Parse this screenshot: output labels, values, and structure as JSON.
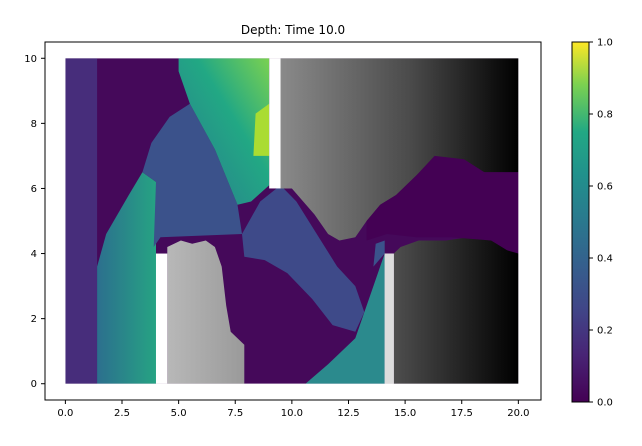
{
  "chart_data": {
    "type": "heatmap",
    "title": "Depth: Time 10.0",
    "xlabel": "",
    "ylabel": "",
    "xlim": [
      -0.9,
      21.0
    ],
    "ylim": [
      -0.5,
      10.5
    ],
    "xticks": [
      0.0,
      2.5,
      5.0,
      7.5,
      10.0,
      12.5,
      15.0,
      17.5,
      20.0
    ],
    "xtick_labels": [
      "0.0",
      "2.5",
      "5.0",
      "7.5",
      "10.0",
      "12.5",
      "15.0",
      "17.5",
      "20.0"
    ],
    "yticks": [
      0,
      2,
      4,
      6,
      8,
      10
    ],
    "ytick_labels": [
      "0",
      "2",
      "4",
      "6",
      "8",
      "10"
    ],
    "grid": false,
    "colorbar": {
      "colormap": "viridis",
      "range": [
        0.0,
        1.0
      ],
      "ticks": [
        0.0,
        0.2,
        0.4,
        0.6,
        0.8,
        1.0
      ],
      "tick_labels": [
        "0.0",
        "0.2",
        "0.4",
        "0.6",
        "0.8",
        "1.0"
      ],
      "placement": "right"
    },
    "gaps": [
      {
        "x": [
          4.0,
          4.5
        ],
        "y": [
          0,
          4
        ]
      },
      {
        "x": [
          9.0,
          9.5
        ],
        "y": [
          6,
          10
        ]
      },
      {
        "x": [
          14.1,
          14.5
        ],
        "y": [
          0,
          4
        ]
      }
    ],
    "dry_regions": [
      {
        "x": [
          4.5,
          7.9
        ],
        "y": [
          0,
          4.4
        ],
        "shade": "light-gray"
      },
      {
        "x": [
          9.5,
          20.0
        ],
        "y": [
          4.5,
          10
        ],
        "shade": "gray-to-black"
      },
      {
        "x": [
          14.5,
          20.0
        ],
        "y": [
          0,
          4.1
        ],
        "shade": "dark-gray-to-black"
      }
    ],
    "depth_samples": [
      {
        "x": 0.5,
        "y": 9,
        "depth": 0.12
      },
      {
        "x": 2.5,
        "y": 9,
        "depth": 0.08
      },
      {
        "x": 6.0,
        "y": 9,
        "depth": 0.55
      },
      {
        "x": 8.5,
        "y": 7.5,
        "depth": 0.8
      },
      {
        "x": 2.5,
        "y": 1,
        "depth": 0.45
      },
      {
        "x": 6.0,
        "y": 5.5,
        "depth": 0.2
      },
      {
        "x": 10.5,
        "y": 2.5,
        "depth": 0.05
      },
      {
        "x": 13.5,
        "y": 0.5,
        "depth": 0.6
      },
      {
        "x": 17.0,
        "y": 5.5,
        "depth": 0.02
      }
    ]
  }
}
